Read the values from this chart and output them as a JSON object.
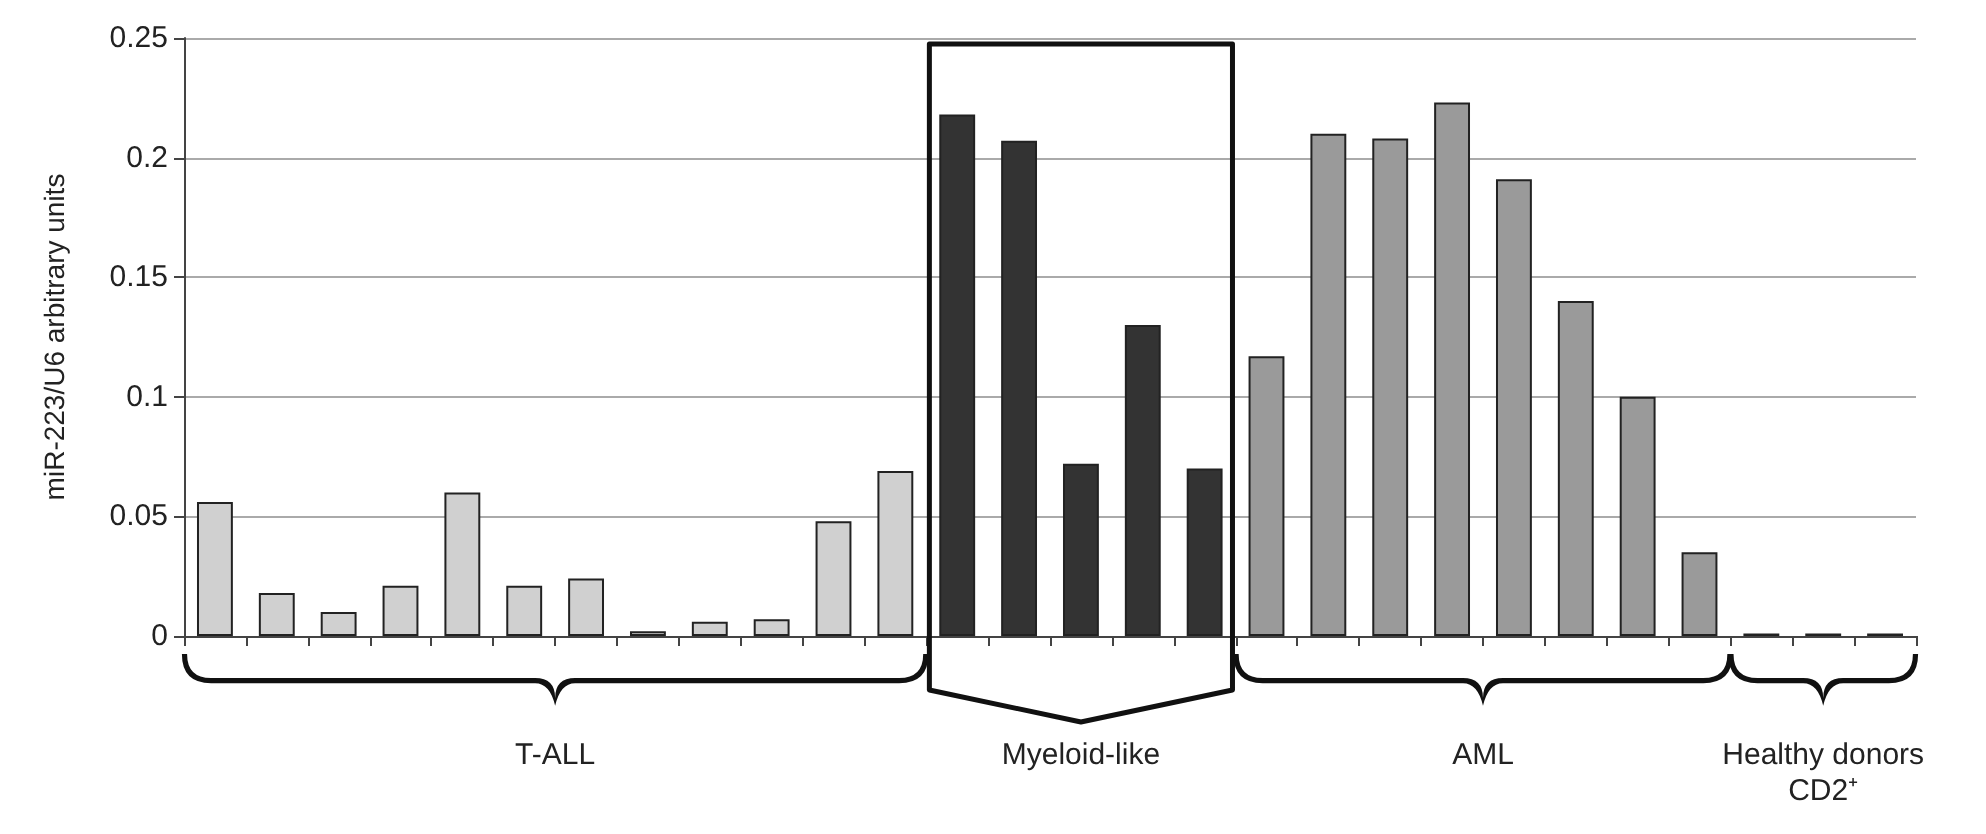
{
  "chart_data": {
    "type": "bar",
    "ylabel": "miR-223/U6 arbitrary units",
    "annotations": [
      "T-ALL",
      "Myeloid-like",
      "AML",
      "Healthy donors CD2⁺"
    ],
    "categories": [
      null,
      null,
      null,
      null,
      null,
      null,
      null,
      null,
      null,
      null,
      null,
      null,
      null,
      null,
      null,
      null,
      null,
      null,
      null,
      null,
      null,
      null,
      null,
      null,
      null,
      null,
      null,
      null
    ],
    "series": [
      {
        "color": "#d0d0d0",
        "values": [
          0.056,
          0.018,
          0.01,
          0.021,
          0.06,
          0.021,
          0.024,
          0.002,
          0.006,
          0.007,
          0.048,
          0.069,
          null,
          null,
          null,
          null,
          null,
          null,
          null,
          null,
          null,
          null,
          null,
          null,
          null,
          null,
          null,
          null
        ]
      },
      {
        "color": "#333333",
        "values": [
          null,
          null,
          null,
          null,
          null,
          null,
          null,
          null,
          null,
          null,
          null,
          null,
          0.218,
          0.207,
          0.072,
          0.13,
          0.07,
          null,
          null,
          null,
          null,
          null,
          null,
          null,
          null,
          null,
          null,
          null
        ]
      },
      {
        "color": "#9a9a9a",
        "values": [
          null,
          null,
          null,
          null,
          null,
          null,
          null,
          null,
          null,
          null,
          null,
          null,
          null,
          null,
          null,
          null,
          null,
          0.117,
          0.21,
          0.208,
          0.223,
          0.191,
          0.14,
          0.1,
          0.035,
          null,
          null,
          null
        ]
      },
      {
        "color": "#9a9a9a",
        "values": [
          null,
          null,
          null,
          null,
          null,
          null,
          null,
          null,
          null,
          null,
          null,
          null,
          null,
          null,
          null,
          null,
          null,
          null,
          null,
          null,
          null,
          null,
          null,
          null,
          null,
          0.001,
          0.001,
          0.001
        ]
      }
    ],
    "ylim": [
      0,
      0.25
    ],
    "yticks": [
      0,
      0.05,
      0.1,
      0.15,
      0.2,
      0.25
    ],
    "grid": "y"
  }
}
